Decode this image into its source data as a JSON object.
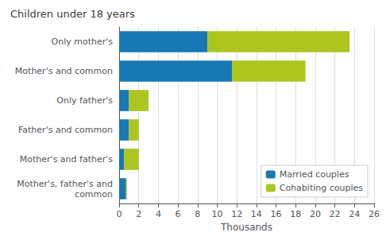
{
  "chart_data": {
    "type": "bar",
    "orientation": "horizontal",
    "stacked": true,
    "title": "Children under 18 years",
    "xlabel": "Thousands",
    "categories": [
      "Mother's, father's and\ncommon",
      "Mother's and father's",
      "Father's and common",
      "Only father's",
      "Mother's and common",
      "Only mother's"
    ],
    "series": [
      {
        "name": "Married couples",
        "color": "#1878b4",
        "values": [
          0.7,
          0.5,
          1.0,
          1.0,
          11.5,
          9.0
        ]
      },
      {
        "name": "Cohabiting couples",
        "color": "#aec520",
        "values": [
          0.1,
          1.5,
          1.0,
          2.0,
          7.5,
          14.5
        ]
      }
    ],
    "xlim": [
      0,
      26
    ],
    "xticks": [
      0,
      2,
      4,
      6,
      8,
      10,
      12,
      14,
      16,
      18,
      20,
      22,
      24,
      26
    ],
    "grid": true,
    "legend": "lower right"
  }
}
